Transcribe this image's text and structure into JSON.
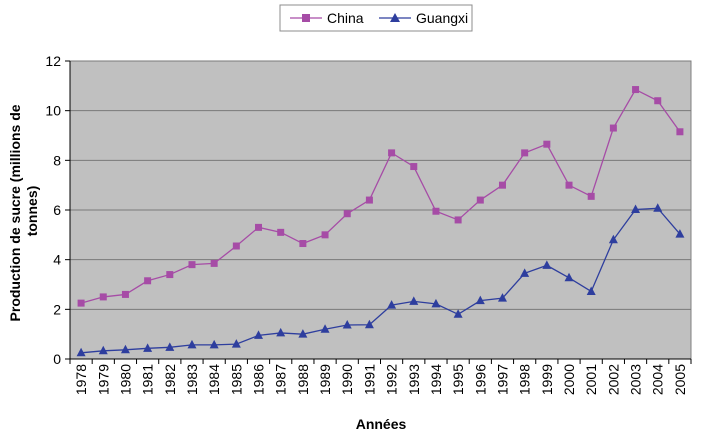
{
  "chart_data": {
    "type": "line",
    "title": "",
    "xlabel": "Années",
    "ylabel": "Production de sucre (millions de tonnes)",
    "ylim": [
      0,
      12
    ],
    "yticks": [
      0,
      2,
      4,
      6,
      8,
      10,
      12
    ],
    "grid": true,
    "legend_position": "top-center",
    "plot_background": "#C0C0C0",
    "categories": [
      "1978",
      "1979",
      "1980",
      "1981",
      "1982",
      "1983",
      "1984",
      "1985",
      "1986",
      "1987",
      "1988",
      "1989",
      "1990",
      "1991",
      "1992",
      "1993",
      "1994",
      "1995",
      "1996",
      "1997",
      "1998",
      "1999",
      "2000",
      "2001",
      "2002",
      "2003",
      "2004",
      "2005"
    ],
    "series": [
      {
        "name": "China",
        "color": "#A64CA6",
        "marker": "square",
        "values": [
          2.25,
          2.5,
          2.6,
          3.15,
          3.4,
          3.8,
          3.85,
          4.55,
          5.3,
          5.1,
          4.65,
          5.0,
          5.85,
          6.4,
          8.3,
          7.75,
          5.95,
          5.6,
          6.4,
          7.0,
          8.3,
          8.65,
          7.0,
          6.55,
          9.3,
          10.85,
          10.4,
          9.15
        ]
      },
      {
        "name": "Guangxi",
        "color": "#2E3E9E",
        "marker": "triangle",
        "values": [
          0.25,
          0.33,
          0.37,
          0.43,
          0.47,
          0.57,
          0.57,
          0.6,
          0.95,
          1.05,
          1.0,
          1.2,
          1.37,
          1.38,
          2.17,
          2.32,
          2.22,
          1.8,
          2.35,
          2.45,
          3.45,
          3.77,
          3.27,
          2.72,
          4.8,
          6.02,
          6.07,
          5.03
        ]
      }
    ]
  }
}
